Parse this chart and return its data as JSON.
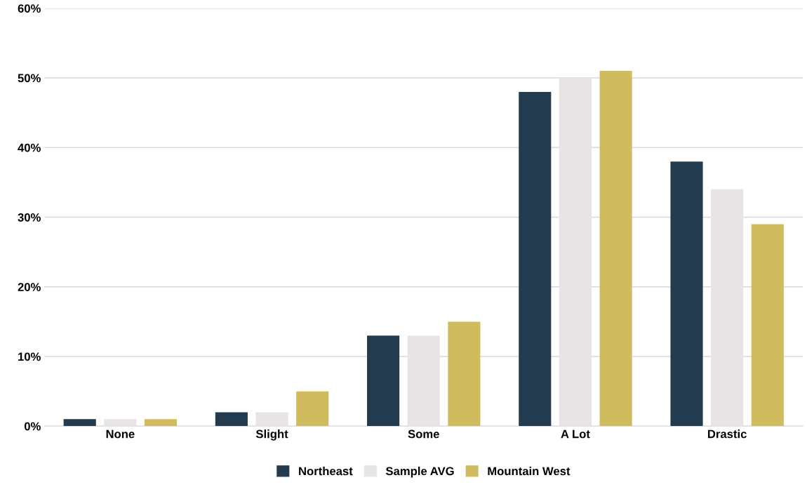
{
  "chart_data": {
    "type": "bar",
    "categories": [
      "None",
      "Slight",
      "Some",
      "A Lot",
      "Drastic"
    ],
    "series": [
      {
        "name": "Northeast",
        "color": "#223b4e",
        "values": [
          1,
          2,
          13,
          48,
          38
        ]
      },
      {
        "name": "Sample AVG",
        "color": "#e8e4e6",
        "values": [
          1,
          2,
          13,
          50,
          34
        ]
      },
      {
        "name": "Mountain West",
        "color": "#d1bb5f",
        "values": [
          1,
          5,
          15,
          51,
          29
        ]
      }
    ],
    "ylim": [
      0,
      60
    ],
    "yticks": [
      {
        "value": 0,
        "label": "0%"
      },
      {
        "value": 10,
        "label": "10%"
      },
      {
        "value": 20,
        "label": "20%"
      },
      {
        "value": 30,
        "label": "30%"
      },
      {
        "value": 40,
        "label": "40%"
      },
      {
        "value": 50,
        "label": "50%"
      },
      {
        "value": 60,
        "label": "60%"
      }
    ],
    "grid": "y",
    "legend": "bottom"
  }
}
